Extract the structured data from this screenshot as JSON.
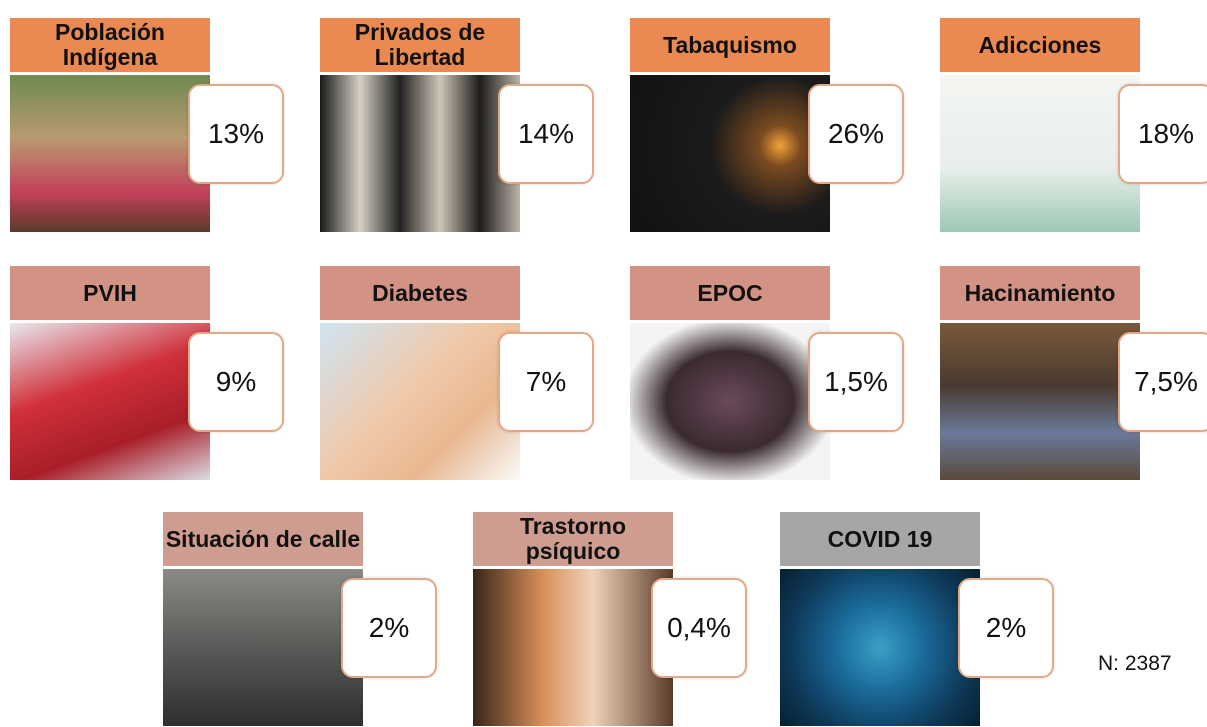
{
  "tiles": [
    {
      "label": "Población Indígena",
      "value": "13%"
    },
    {
      "label": "Privados de Libertad",
      "value": "14%"
    },
    {
      "label": "Tabaquismo",
      "value": "26%"
    },
    {
      "label": "Adicciones",
      "value": "18%"
    },
    {
      "label": "PVIH",
      "value": "9%"
    },
    {
      "label": "Diabetes",
      "value": "7%"
    },
    {
      "label": "EPOC",
      "value": "1,5%"
    },
    {
      "label": "Hacinamiento",
      "value": "7,5%"
    },
    {
      "label": "Situación de calle",
      "value": "2%"
    },
    {
      "label": "Trastorno psíquico",
      "value": "0,4%"
    },
    {
      "label": "COVID 19",
      "value": "2%"
    }
  ],
  "note": "N: 2387"
}
